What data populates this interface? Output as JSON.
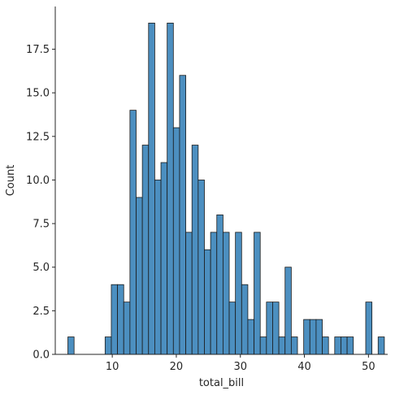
{
  "chart_data": {
    "type": "bar",
    "subtype": "histogram",
    "title": "",
    "xlabel": "total_bill",
    "ylabel": "Count",
    "bin_start": 3.07,
    "bin_width": 0.9688,
    "counts": [
      1,
      0,
      0,
      0,
      0,
      0,
      1,
      4,
      4,
      3,
      14,
      9,
      12,
      19,
      10,
      11,
      19,
      13,
      16,
      7,
      12,
      10,
      6,
      7,
      8,
      7,
      3,
      7,
      4,
      2,
      7,
      1,
      3,
      3,
      1,
      5,
      1,
      0,
      2,
      2,
      2,
      1,
      0,
      1,
      1,
      1,
      0,
      0,
      3,
      0,
      1
    ],
    "xlim": [
      1.1,
      53.0
    ],
    "ylim": [
      0,
      19.95
    ],
    "xticks": [
      10,
      20,
      30,
      40,
      50
    ],
    "xtick_labels": [
      "10",
      "20",
      "30",
      "40",
      "50"
    ],
    "yticks": [
      0,
      2.5,
      5,
      7.5,
      10,
      12.5,
      15,
      17.5
    ],
    "ytick_labels": [
      "0.0",
      "2.5",
      "5.0",
      "7.5",
      "10.0",
      "12.5",
      "15.0",
      "17.5"
    ],
    "bar_color": "#4c8fc0",
    "edge_color": "#1a1a1a",
    "grid": false,
    "spines": "left-bottom"
  }
}
